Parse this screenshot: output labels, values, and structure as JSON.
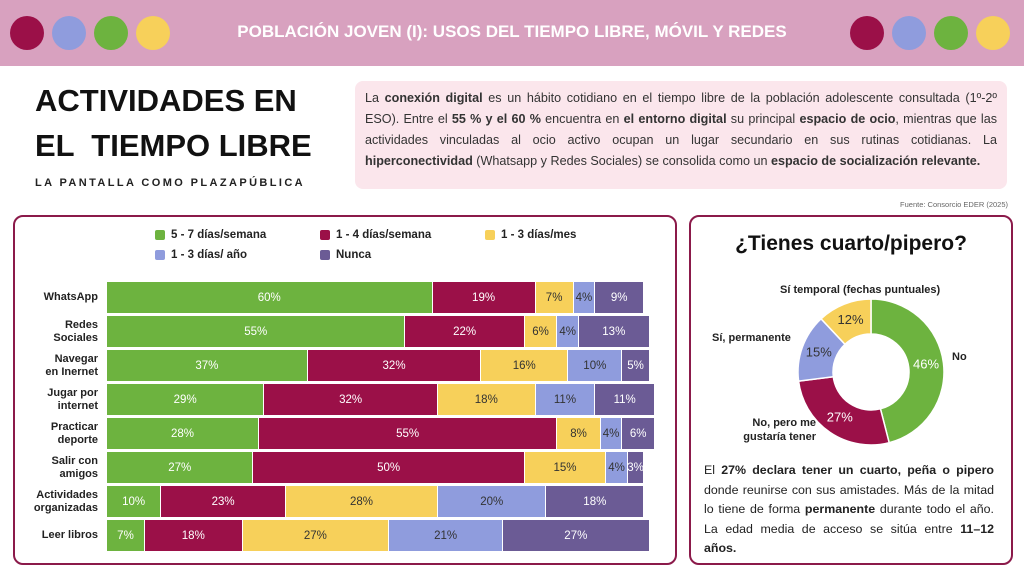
{
  "header": {
    "title": "POBLACIÓN JOVEN (I): USOS DEL TIEMPO LIBRE, MÓVIL Y REDES"
  },
  "section": {
    "title_line1": "ACTIVIDADES EN",
    "title_line2": "EL  TIEMPO LIBRE",
    "subtitle": "LA PANTALLA COMO PLAZAPÚBLICA"
  },
  "intro": {
    "runs": [
      {
        "text": "La ",
        "bold": false
      },
      {
        "text": "conexión digital",
        "bold": true
      },
      {
        "text": " es un hábito cotidiano en el tiempo libre de la población adolescente consultada (1º-2º ESO). Entre el ",
        "bold": false
      },
      {
        "text": "55 % y el 60 %",
        "bold": true
      },
      {
        "text": " encuentra en ",
        "bold": false
      },
      {
        "text": "el entorno digital",
        "bold": true
      },
      {
        "text": " su principal ",
        "bold": false
      },
      {
        "text": "espacio de ocio",
        "bold": true
      },
      {
        "text": ", mientras que las actividades vinculadas al ocio activo ocupan un lugar secundario en sus rutinas cotidianas. La ",
        "bold": false
      },
      {
        "text": "hiperconectividad",
        "bold": true
      },
      {
        "text": " (Whatsapp y Redes Sociales) se consolida como un ",
        "bold": false
      },
      {
        "text": "espacio de socialización relevante.",
        "bold": true
      }
    ]
  },
  "source": "Fuente: Consorcio EDER (2025)",
  "chart_data": [
    {
      "type": "stacked-bar",
      "categories": [
        "WhatsApp",
        "Redes\nSociales",
        "Navegar\nen Inernet",
        "Jugar por\ninternet",
        "Practicar\ndeporte",
        "Salir con\namigos",
        "Actividades\norganizadas",
        "Leer libros"
      ],
      "series": [
        {
          "name": "5 - 7 días/semana",
          "color": "#6db33f",
          "values": [
            60,
            55,
            37,
            29,
            28,
            27,
            10,
            7
          ],
          "value_labels": [
            "60%",
            "55%",
            "37%",
            "29%",
            "28%",
            "27%",
            "10%",
            "7%"
          ]
        },
        {
          "name": "1 - 4 días/semana",
          "color": "#9b1048",
          "values": [
            19,
            22,
            32,
            32,
            55,
            50,
            23,
            18
          ],
          "value_labels": [
            "19%",
            "22%",
            "32%",
            "32%",
            "55%",
            "50%",
            "23%",
            "18%"
          ]
        },
        {
          "name": "1 - 3 días/mes",
          "color": "#f7d05a",
          "values": [
            7,
            6,
            16,
            18,
            8,
            15,
            28,
            27
          ],
          "value_labels": [
            "7%",
            "6%",
            "16%",
            "18%",
            "8%",
            "15%",
            "28%",
            "27%"
          ]
        },
        {
          "name": "1 - 3 días/ año",
          "color": "#8f9cdd",
          "values": [
            4,
            4,
            10,
            11,
            4,
            4,
            20,
            21
          ],
          "value_labels": [
            "4%",
            "4%",
            "10%",
            "11%",
            "4%",
            "4%",
            "20%",
            "21%"
          ]
        },
        {
          "name": "Nunca",
          "color": "#6b5b95",
          "values": [
            9,
            13,
            5,
            11,
            6,
            3,
            18,
            27
          ],
          "value_labels": [
            "9%",
            "13%",
            "5%",
            "11%",
            "6%",
            "3%",
            "18%",
            "27%"
          ]
        }
      ]
    },
    {
      "type": "donut",
      "title": "¿Tienes cuarto/pipero?",
      "categories": [
        "No",
        "No, pero me\ngustaría tener",
        "Sí, permanente",
        "Sí temporal (fechas puntuales)"
      ],
      "values": [
        46,
        27,
        15,
        12
      ],
      "value_labels": [
        "46%",
        "27%",
        "15%",
        "12%"
      ],
      "colors": [
        "#6db33f",
        "#9b1048",
        "#8f9cdd",
        "#f7d05a"
      ]
    }
  ],
  "donut_note": {
    "runs": [
      {
        "text": "El ",
        "bold": false
      },
      {
        "text": "27% declara tener un cuarto, peña o pipero",
        "bold": true
      },
      {
        "text": " donde reunirse con sus amistades. Más de la mitad lo tiene de forma ",
        "bold": false
      },
      {
        "text": "permanente",
        "bold": true
      },
      {
        "text": " durante todo el año. La edad media  de acceso se sitúa entre ",
        "bold": false
      },
      {
        "text": "11–12 años.",
        "bold": true
      }
    ]
  }
}
